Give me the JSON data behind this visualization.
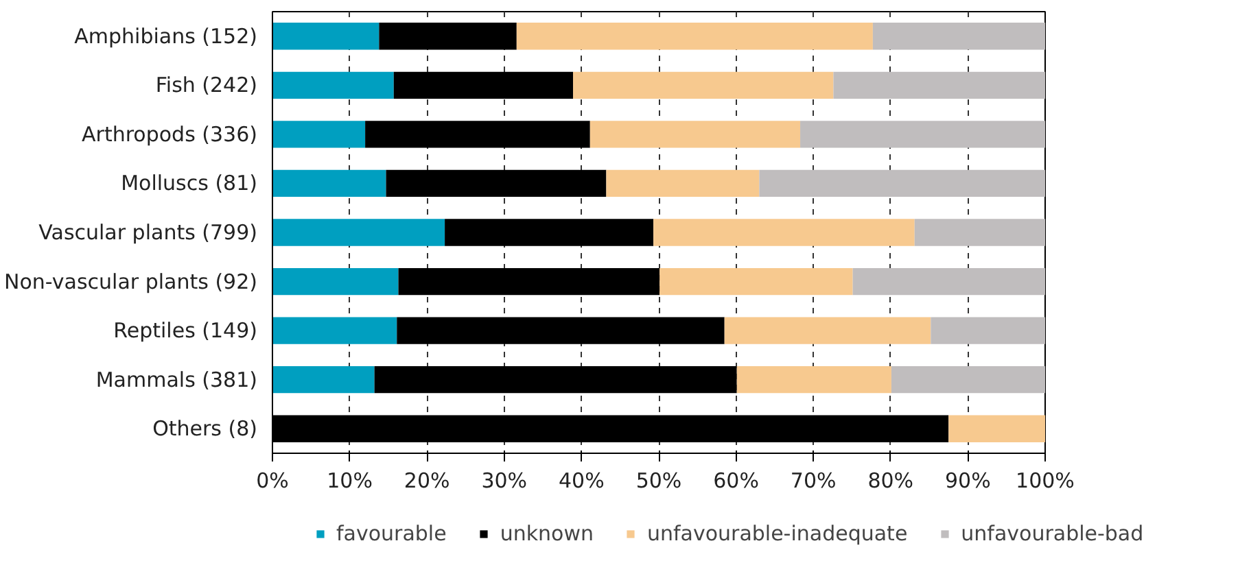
{
  "chart_data": {
    "type": "bar",
    "orientation": "horizontal",
    "stacked": true,
    "categories": [
      "Amphibians (152)",
      "Fish (242)",
      "Arthropods (336)",
      "Molluscs (81)",
      "Vascular plants (799)",
      "Non-vascular plants (92)",
      "Reptiles (149)",
      "Mammals (381)",
      "Others (8)"
    ],
    "series": [
      {
        "name": "favourable",
        "color": "#009fc0",
        "values": [
          13.8,
          15.7,
          12.0,
          14.7,
          22.3,
          16.3,
          16.1,
          13.2,
          0
        ]
      },
      {
        "name": "unknown",
        "color": "#000000",
        "values": [
          17.8,
          23.2,
          29.1,
          28.5,
          27.0,
          33.8,
          42.4,
          46.9,
          87.5
        ]
      },
      {
        "name": "unfavourable-inadequate",
        "color": "#f7c98f",
        "values": [
          46.1,
          33.7,
          27.2,
          19.8,
          33.8,
          25.0,
          26.7,
          20.0,
          12.5
        ]
      },
      {
        "name": "unfavourable-bad",
        "color": "#c0bdbe",
        "values": [
          22.3,
          27.4,
          31.7,
          37.0,
          16.9,
          24.9,
          14.8,
          19.9,
          0
        ]
      }
    ],
    "xlim": [
      0,
      100
    ],
    "xticks": [
      {
        "value": 0,
        "label": "0%"
      },
      {
        "value": 10,
        "label": "10%"
      },
      {
        "value": 20,
        "label": "20%"
      },
      {
        "value": 30,
        "label": "30%"
      },
      {
        "value": 40,
        "label": "40%"
      },
      {
        "value": 50,
        "label": "50%"
      },
      {
        "value": 60,
        "label": "60%"
      },
      {
        "value": 70,
        "label": "70%"
      },
      {
        "value": 80,
        "label": "80%"
      },
      {
        "value": 90,
        "label": "90%"
      },
      {
        "value": 100,
        "label": "100%"
      }
    ],
    "grid": "x",
    "legend": "bottom"
  }
}
